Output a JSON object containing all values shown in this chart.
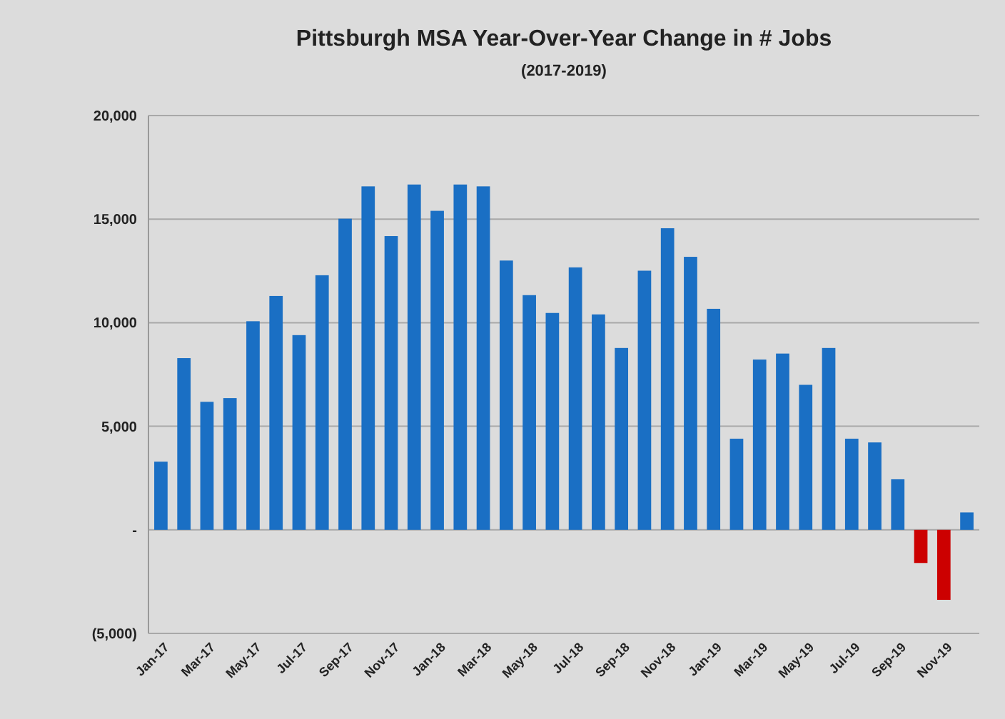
{
  "chart_data": {
    "type": "bar",
    "title": "Pittsburgh MSA Year-Over-Year Change in # Jobs",
    "subtitle": "(2017-2019)",
    "categories": [
      "Jan-17",
      null,
      "Mar-17",
      null,
      "May-17",
      null,
      "Jul-17",
      null,
      "Sep-17",
      null,
      "Nov-17",
      null,
      "Jan-18",
      null,
      "Mar-18",
      null,
      "May-18",
      null,
      "Jul-18",
      null,
      "Sep-18",
      null,
      "Nov-18",
      null,
      "Jan-19",
      null,
      "Mar-19",
      null,
      "May-19",
      null,
      "Jul-19",
      null,
      "Sep-19",
      null,
      "Nov-19",
      null
    ],
    "values": [
      3290,
      8290,
      6180,
      6360,
      10070,
      11290,
      9400,
      12290,
      15020,
      16580,
      14180,
      16670,
      15400,
      16670,
      16580,
      13000,
      11330,
      10470,
      12670,
      10400,
      8780,
      12510,
      14560,
      13180,
      10670,
      4400,
      8220,
      8510,
      7000,
      8780,
      4400,
      4220,
      2440,
      -1600,
      -3380,
      840
    ],
    "colors": [
      "#1a6fc4",
      "#1a6fc4",
      "#1a6fc4",
      "#1a6fc4",
      "#1a6fc4",
      "#1a6fc4",
      "#1a6fc4",
      "#1a6fc4",
      "#1a6fc4",
      "#1a6fc4",
      "#1a6fc4",
      "#1a6fc4",
      "#1a6fc4",
      "#1a6fc4",
      "#1a6fc4",
      "#1a6fc4",
      "#1a6fc4",
      "#1a6fc4",
      "#1a6fc4",
      "#1a6fc4",
      "#1a6fc4",
      "#1a6fc4",
      "#1a6fc4",
      "#1a6fc4",
      "#1a6fc4",
      "#1a6fc4",
      "#1a6fc4",
      "#1a6fc4",
      "#1a6fc4",
      "#1a6fc4",
      "#1a6fc4",
      "#1a6fc4",
      "#1a6fc4",
      "#cc0000",
      "#cc0000",
      "#1a6fc4"
    ],
    "ylim": [
      -5000,
      20000
    ],
    "yticks": [
      {
        "value": -5000,
        "label": "(5,000)"
      },
      {
        "value": 0,
        "label": "-"
      },
      {
        "value": 5000,
        "label": "5,000"
      },
      {
        "value": 10000,
        "label": "10,000"
      },
      {
        "value": 15000,
        "label": "15,000"
      },
      {
        "value": 20000,
        "label": "20,000"
      }
    ],
    "grid": "y"
  }
}
